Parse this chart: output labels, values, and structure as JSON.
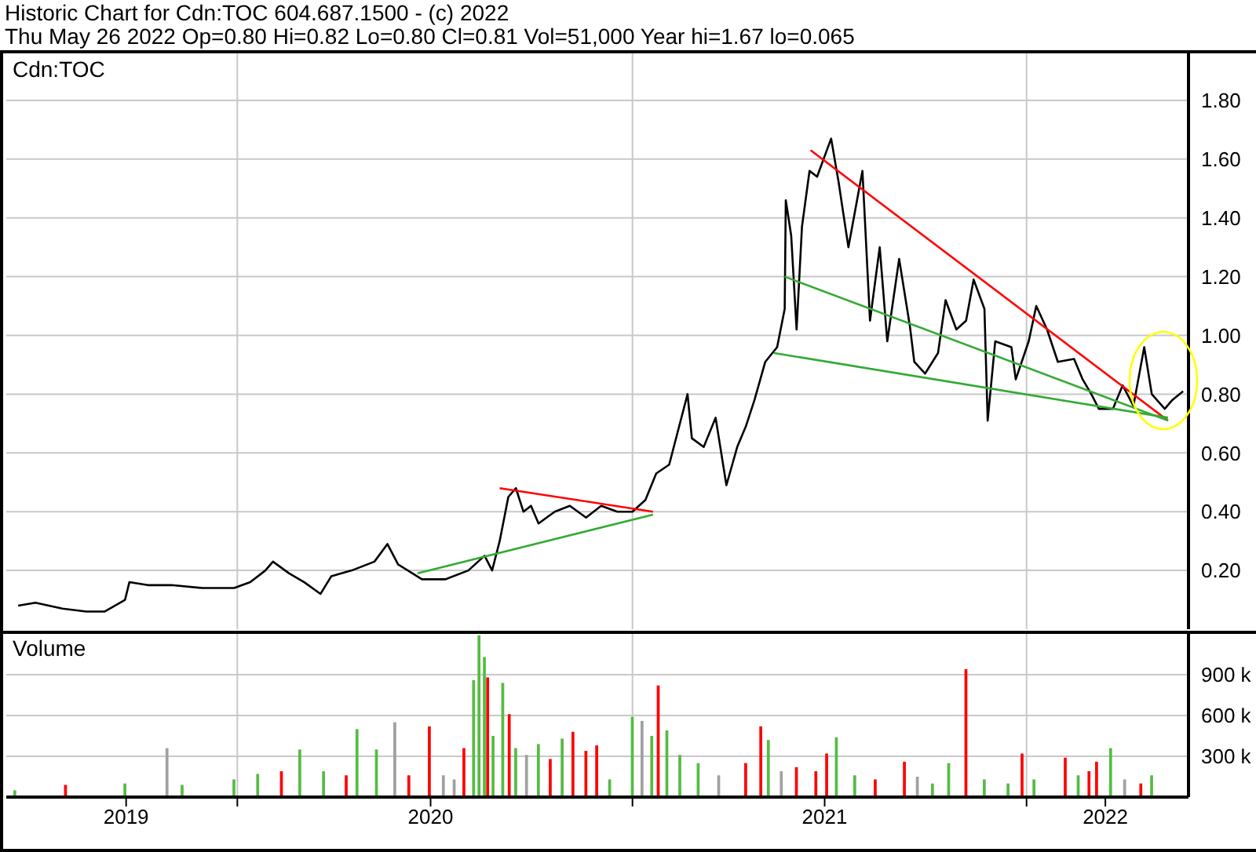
{
  "chart_data": [
    {
      "type": "line",
      "title": "Historic Chart for Cdn:TOC 604.687.1500 - (c) 2022",
      "subtitle": "Thu May 26 2022  Op=0.80  Hi=0.82  Lo=0.80  Cl=0.81  Vol=51,000  Year hi=1.67  lo=0.065",
      "annotations": [
        "Cdn:TOC"
      ],
      "xlim": [
        "2019-06-01",
        "2022-05-31"
      ],
      "xticks": [
        {
          "value": "2020-01-01",
          "label": null
        },
        {
          "value": "2021-01-01",
          "label": null
        },
        {
          "value": "2022-01-01",
          "label": null
        }
      ],
      "ylim": [
        0,
        1.96
      ],
      "yticks": [
        {
          "value": 0.2,
          "label": "0.20"
        },
        {
          "value": 0.4,
          "label": "0.40"
        },
        {
          "value": 0.6,
          "label": "0.60"
        },
        {
          "value": 0.8,
          "label": "0.80"
        },
        {
          "value": 1,
          "label": "1.00"
        },
        {
          "value": 1.2,
          "label": "1.20"
        },
        {
          "value": 1.4,
          "label": "1.40"
        },
        {
          "value": 1.6,
          "label": "1.60"
        },
        {
          "value": 1.8,
          "label": "1.80"
        }
      ],
      "tick_labels": "y",
      "grid": true,
      "marker": "none",
      "line_style": "solid",
      "series": [
        {
          "color": "#000000",
          "x": [
            "2019-06-12",
            "2019-06-28",
            "2019-07-23",
            "2019-08-14",
            "2019-08-31",
            "2019-09-19",
            "2019-09-23",
            "2019-10-10",
            "2019-11-01",
            "2019-11-30",
            "2019-12-29",
            "2020-01-13",
            "2020-01-27",
            "2020-02-03",
            "2020-02-18",
            "2020-03-03",
            "2020-03-18",
            "2020-03-28",
            "2020-04-16",
            "2020-05-07",
            "2020-05-19",
            "2020-05-29",
            "2020-06-20",
            "2020-07-12",
            "2020-08-02",
            "2020-08-17",
            "2020-08-24",
            "2020-08-31",
            "2020-09-08",
            "2020-09-15",
            "2020-09-22",
            "2020-09-29",
            "2020-10-06",
            "2020-10-21",
            "2020-11-04",
            "2020-11-19",
            "2020-12-03",
            "2020-12-18",
            "2021-01-01",
            "2021-01-13",
            "2021-01-23",
            "2021-02-04",
            "2021-02-21",
            "2021-02-25",
            "2021-03-08",
            "2021-03-19",
            "2021-03-29",
            "2021-04-08",
            "2021-04-16",
            "2021-04-24",
            "2021-05-04",
            "2021-05-15",
            "2021-05-22",
            "2021-05-23",
            "2021-05-28",
            "2021-06-02",
            "2021-06-07",
            "2021-06-14",
            "2021-06-21",
            "2021-07-04",
            "2021-07-11",
            "2021-07-20",
            "2021-08-02",
            "2021-08-09",
            "2021-08-18",
            "2021-08-25",
            "2021-09-05",
            "2021-09-15",
            "2021-09-19",
            "2021-09-29",
            "2021-10-11",
            "2021-10-18",
            "2021-10-28",
            "2021-11-06",
            "2021-11-13",
            "2021-11-23",
            "2021-11-26",
            "2021-12-03",
            "2021-12-18",
            "2021-12-22",
            "2022-01-03",
            "2022-01-10",
            "2022-01-20",
            "2022-01-30",
            "2022-02-14",
            "2022-02-22",
            "2022-03-02",
            "2022-03-09",
            "2022-03-22",
            "2022-03-31",
            "2022-04-10",
            "2022-04-20",
            "2022-04-27",
            "2022-05-09",
            "2022-05-16",
            "2022-05-26"
          ],
          "values": [
            0.08,
            0.09,
            0.07,
            0.06,
            0.06,
            0.1,
            0.16,
            0.15,
            0.15,
            0.14,
            0.14,
            0.16,
            0.2,
            0.23,
            0.19,
            0.16,
            0.12,
            0.18,
            0.2,
            0.23,
            0.29,
            0.22,
            0.17,
            0.17,
            0.2,
            0.25,
            0.2,
            0.3,
            0.45,
            0.48,
            0.4,
            0.42,
            0.36,
            0.4,
            0.42,
            0.38,
            0.42,
            0.4,
            0.4,
            0.44,
            0.53,
            0.56,
            0.8,
            0.65,
            0.62,
            0.72,
            0.49,
            0.62,
            0.69,
            0.78,
            0.91,
            0.96,
            1.09,
            1.46,
            1.34,
            1.02,
            1.37,
            1.56,
            1.54,
            1.67,
            1.52,
            1.3,
            1.56,
            1.05,
            1.3,
            0.98,
            1.26,
            1.03,
            0.91,
            0.87,
            0.94,
            1.12,
            1.02,
            1.05,
            1.19,
            1.09,
            0.71,
            0.98,
            0.96,
            0.85,
            0.98,
            1.1,
            1.02,
            0.91,
            0.92,
            0.85,
            0.8,
            0.75,
            0.75,
            0.83,
            0.76,
            0.96,
            0.8,
            0.75,
            0.78,
            0.81
          ]
        },
        {
          "type": "line",
          "color": "#ff0000",
          "x": [
            "2020-08-31",
            "2021-01-20"
          ],
          "values": [
            0.48,
            0.4
          ]
        },
        {
          "type": "line",
          "color": "#33aa33",
          "x": [
            "2020-06-16",
            "2021-01-20"
          ],
          "values": [
            0.19,
            0.39
          ]
        },
        {
          "type": "line",
          "color": "#ff0000",
          "x": [
            "2021-06-15",
            "2022-05-12"
          ],
          "values": [
            1.63,
            0.71
          ]
        },
        {
          "type": "line",
          "color": "#33aa33",
          "x": [
            "2021-05-22",
            "2022-05-12"
          ],
          "values": [
            1.2,
            0.71
          ]
        },
        {
          "type": "line",
          "color": "#33aa33",
          "x": [
            "2021-05-12",
            "2022-05-12"
          ],
          "values": [
            0.94,
            0.72
          ]
        }
      ]
    },
    {
      "type": "bar",
      "ylabel": "Volume",
      "xlim": [
        "2019-06-01",
        "2022-05-31"
      ],
      "xticks": [
        {
          "value": "2019-09-20",
          "label": "2019"
        },
        {
          "value": "2020-01-01",
          "label": null
        },
        {
          "value": "2020-06-28",
          "label": "2020"
        },
        {
          "value": "2021-01-01",
          "label": null
        },
        {
          "value": "2021-06-28",
          "label": "2021"
        },
        {
          "value": "2022-01-01",
          "label": null
        },
        {
          "value": "2022-03-15",
          "label": "2022"
        }
      ],
      "ylim": [
        0,
        1200000
      ],
      "yticks": [
        {
          "value": 300000,
          "label": "300 k"
        },
        {
          "value": 600000,
          "label": "600 k"
        },
        {
          "value": 900000,
          "label": "900 k"
        }
      ],
      "grid": true,
      "x": [
        "2019-06-09",
        "2019-07-26",
        "2019-09-19",
        "2019-10-28",
        "2019-11-11",
        "2019-12-29",
        "2020-01-20",
        "2020-02-11",
        "2020-02-28",
        "2020-03-21",
        "2020-04-11",
        "2020-04-21",
        "2020-05-09",
        "2020-05-26",
        "2020-06-08",
        "2020-06-27",
        "2020-07-10",
        "2020-07-20",
        "2020-07-29",
        "2020-08-07",
        "2020-08-12",
        "2020-08-17",
        "2020-08-20",
        "2020-08-25",
        "2020-09-03",
        "2020-09-09",
        "2020-09-15",
        "2020-09-25",
        "2020-10-06",
        "2020-10-17",
        "2020-10-28",
        "2020-11-07",
        "2020-11-19",
        "2020-11-29",
        "2020-12-11",
        "2021-01-01",
        "2021-01-10",
        "2021-01-19",
        "2021-01-25",
        "2021-02-02",
        "2021-02-14",
        "2021-03-03",
        "2021-03-22",
        "2021-04-16",
        "2021-04-30",
        "2021-05-07",
        "2021-05-19",
        "2021-06-02",
        "2021-06-20",
        "2021-06-30",
        "2021-07-09",
        "2021-07-26",
        "2021-08-14",
        "2021-09-10",
        "2021-09-22",
        "2021-10-06",
        "2021-10-21",
        "2021-11-06",
        "2021-11-23",
        "2021-12-15",
        "2021-12-28",
        "2022-01-08",
        "2022-02-06",
        "2022-02-18",
        "2022-02-28",
        "2022-03-07",
        "2022-03-20",
        "2022-04-02",
        "2022-04-17",
        "2022-04-27"
      ],
      "values": [
        50000,
        90000,
        100000,
        360000,
        90000,
        130000,
        170000,
        190000,
        350000,
        190000,
        160000,
        500000,
        350000,
        550000,
        160000,
        520000,
        160000,
        130000,
        360000,
        860000,
        1190000,
        1030000,
        880000,
        450000,
        840000,
        610000,
        360000,
        310000,
        390000,
        280000,
        430000,
        480000,
        340000,
        380000,
        130000,
        590000,
        560000,
        450000,
        820000,
        490000,
        310000,
        250000,
        160000,
        250000,
        520000,
        420000,
        190000,
        220000,
        190000,
        320000,
        440000,
        160000,
        130000,
        260000,
        150000,
        100000,
        250000,
        940000,
        130000,
        100000,
        320000,
        130000,
        290000,
        160000,
        190000,
        260000,
        360000,
        130000,
        100000,
        160000
      ],
      "colors": [
        "#55bb44",
        "#ff0000",
        "#55bb44",
        "#a0a0a0",
        "#55bb44",
        "#55bb44",
        "#55bb44",
        "#ff0000",
        "#55bb44",
        "#55bb44",
        "#ff0000",
        "#55bb44",
        "#55bb44",
        "#a0a0a0",
        "#ff0000",
        "#ff0000",
        "#a0a0a0",
        "#a0a0a0",
        "#ff0000",
        "#55bb44",
        "#55bb44",
        "#55bb44",
        "#ff0000",
        "#55bb44",
        "#55bb44",
        "#ff0000",
        "#55bb44",
        "#a0a0a0",
        "#55bb44",
        "#ff0000",
        "#55bb44",
        "#ff0000",
        "#ff0000",
        "#ff0000",
        "#55bb44",
        "#55bb44",
        "#a0a0a0",
        "#55bb44",
        "#ff0000",
        "#55bb44",
        "#55bb44",
        "#55bb44",
        "#a0a0a0",
        "#ff0000",
        "#ff0000",
        "#55bb44",
        "#a0a0a0",
        "#ff0000",
        "#ff0000",
        "#ff0000",
        "#55bb44",
        "#55bb44",
        "#ff0000",
        "#ff0000",
        "#a0a0a0",
        "#55bb44",
        "#55bb44",
        "#ff0000",
        "#55bb44",
        "#55bb44",
        "#ff0000",
        "#55bb44",
        "#ff0000",
        "#55bb44",
        "#ff0000",
        "#ff0000",
        "#55bb44",
        "#a0a0a0",
        "#ff0000",
        "#55bb44"
      ]
    }
  ]
}
